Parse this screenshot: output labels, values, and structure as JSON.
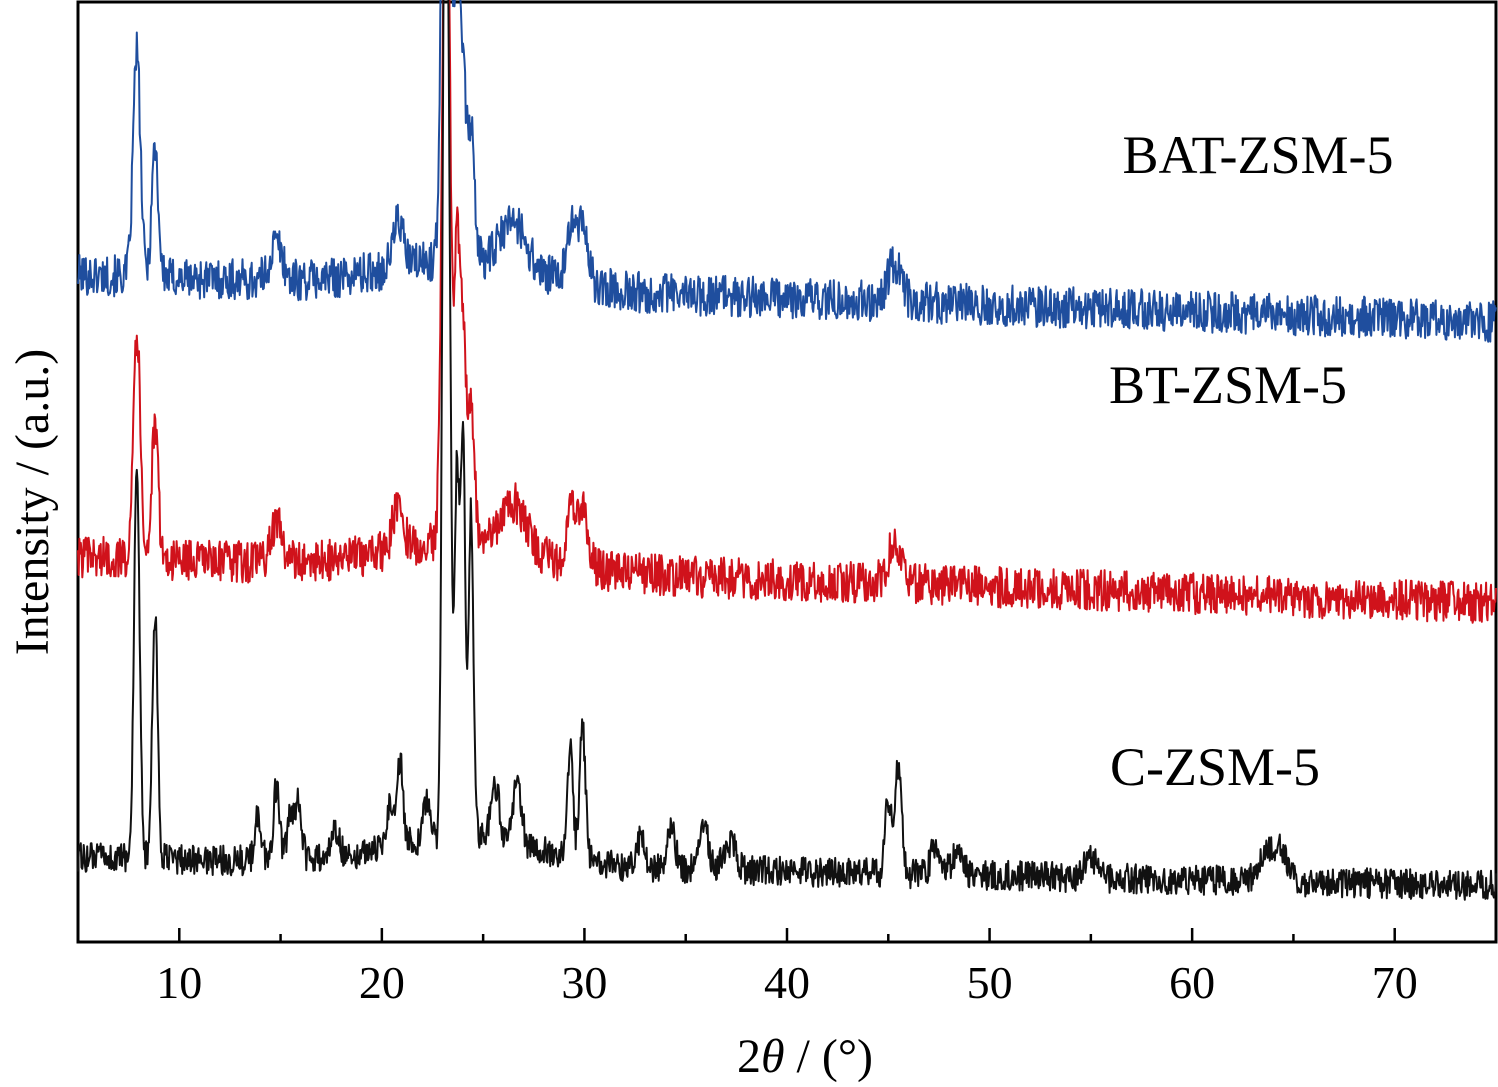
{
  "chart_data": {
    "type": "line",
    "title": "",
    "xlabel_prefix": "2",
    "xlabel_symbol": "θ",
    "xlabel_suffix": " / (°)",
    "ylabel": "Intensity / (a.u.)",
    "xlim": [
      5,
      75
    ],
    "xticks": [
      10,
      20,
      30,
      40,
      50,
      60,
      70
    ],
    "yticks_shown": false,
    "grid": false,
    "legend": "inline-labels",
    "series": [
      {
        "name": "BAT-ZSM-5",
        "color": "#1f4e9e",
        "offset": 60,
        "baseline": 8,
        "baseline_end": 3,
        "noise": 2.2,
        "peaks": [
          [
            7.9,
            24,
            0.18
          ],
          [
            8.8,
            14,
            0.16
          ],
          [
            14.8,
            4,
            0.3
          ],
          [
            20.8,
            5,
            0.25
          ],
          [
            23.1,
            60,
            0.16
          ],
          [
            23.3,
            38,
            0.14
          ],
          [
            23.7,
            30,
            0.15
          ],
          [
            24.0,
            18,
            0.15
          ],
          [
            24.4,
            14,
            0.17
          ],
          [
            26.5,
            5,
            0.6
          ],
          [
            29.3,
            6,
            0.2
          ],
          [
            29.9,
            7,
            0.25
          ],
          [
            45.3,
            4,
            0.35
          ]
        ]
      },
      {
        "name": "BT-ZSM-5",
        "color": "#d0121b",
        "offset": 30,
        "baseline": 8,
        "baseline_end": 3,
        "noise": 2.2,
        "peaks": [
          [
            7.9,
            24,
            0.18
          ],
          [
            8.8,
            14,
            0.16
          ],
          [
            14.8,
            4,
            0.3
          ],
          [
            20.8,
            5,
            0.25
          ],
          [
            23.1,
            58,
            0.16
          ],
          [
            23.3,
            36,
            0.14
          ],
          [
            23.7,
            30,
            0.15
          ],
          [
            24.0,
            20,
            0.15
          ],
          [
            24.4,
            15,
            0.17
          ],
          [
            26.5,
            5,
            0.6
          ],
          [
            29.3,
            6,
            0.2
          ],
          [
            29.9,
            7,
            0.25
          ],
          [
            45.3,
            4,
            0.35
          ]
        ]
      },
      {
        "name": "C-ZSM-5",
        "color": "#111111",
        "offset": 0,
        "baseline": 6,
        "baseline_end": 3,
        "noise": 1.6,
        "peaks": [
          [
            7.9,
            40,
            0.14
          ],
          [
            8.8,
            26,
            0.13
          ],
          [
            13.9,
            5,
            0.15
          ],
          [
            14.8,
            8,
            0.15
          ],
          [
            15.5,
            5,
            0.15
          ],
          [
            15.9,
            6,
            0.15
          ],
          [
            17.7,
            3,
            0.2
          ],
          [
            20.4,
            5,
            0.15
          ],
          [
            20.9,
            9,
            0.15
          ],
          [
            22.2,
            4,
            0.15
          ],
          [
            23.1,
            93,
            0.12
          ],
          [
            23.3,
            60,
            0.12
          ],
          [
            23.7,
            38,
            0.12
          ],
          [
            24.0,
            42,
            0.12
          ],
          [
            24.4,
            35,
            0.12
          ],
          [
            25.6,
            6,
            0.2
          ],
          [
            26.7,
            7,
            0.2
          ],
          [
            29.3,
            12,
            0.13
          ],
          [
            29.9,
            14,
            0.15
          ],
          [
            32.8,
            3,
            0.2
          ],
          [
            34.3,
            4,
            0.2
          ],
          [
            35.9,
            5,
            0.2
          ],
          [
            37.2,
            3,
            0.3
          ],
          [
            45.0,
            8,
            0.15
          ],
          [
            45.5,
            12,
            0.15
          ],
          [
            47.3,
            3,
            0.2
          ],
          [
            48.4,
            2,
            0.3
          ],
          [
            55.0,
            2,
            0.3
          ],
          [
            63.6,
            2,
            0.4
          ],
          [
            64.3,
            3,
            0.4
          ]
        ]
      }
    ]
  }
}
